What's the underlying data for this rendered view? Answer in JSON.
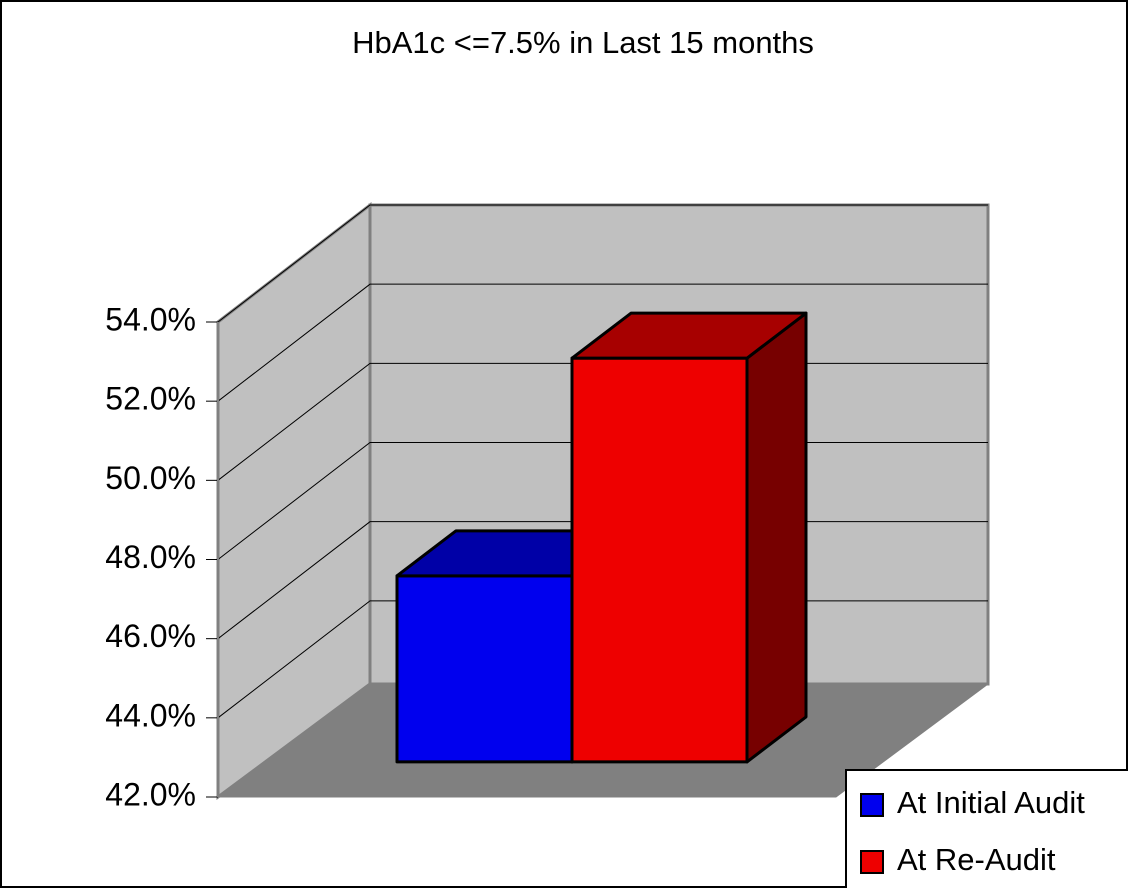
{
  "chart_data": {
    "type": "bar3d",
    "title": "HbA1c <=7.5% in Last 15 months",
    "series": [
      {
        "name": "At Initial Audit",
        "color": "#0000ee",
        "values": [
          46.7
        ]
      },
      {
        "name": "At Re-Audit",
        "color": "#ee0000",
        "values": [
          52.2
        ]
      }
    ],
    "ylim": [
      42,
      54
    ],
    "yticks": [
      {
        "value": 42,
        "label": "42.0%"
      },
      {
        "value": 44,
        "label": "44.0%"
      },
      {
        "value": 46,
        "label": "46.0%"
      },
      {
        "value": 48,
        "label": "48.0%"
      },
      {
        "value": 50,
        "label": "50.0%"
      },
      {
        "value": 52,
        "label": "52.0%"
      },
      {
        "value": 54,
        "label": "54.0%"
      }
    ],
    "grid": true,
    "legend": "bottom-right"
  }
}
